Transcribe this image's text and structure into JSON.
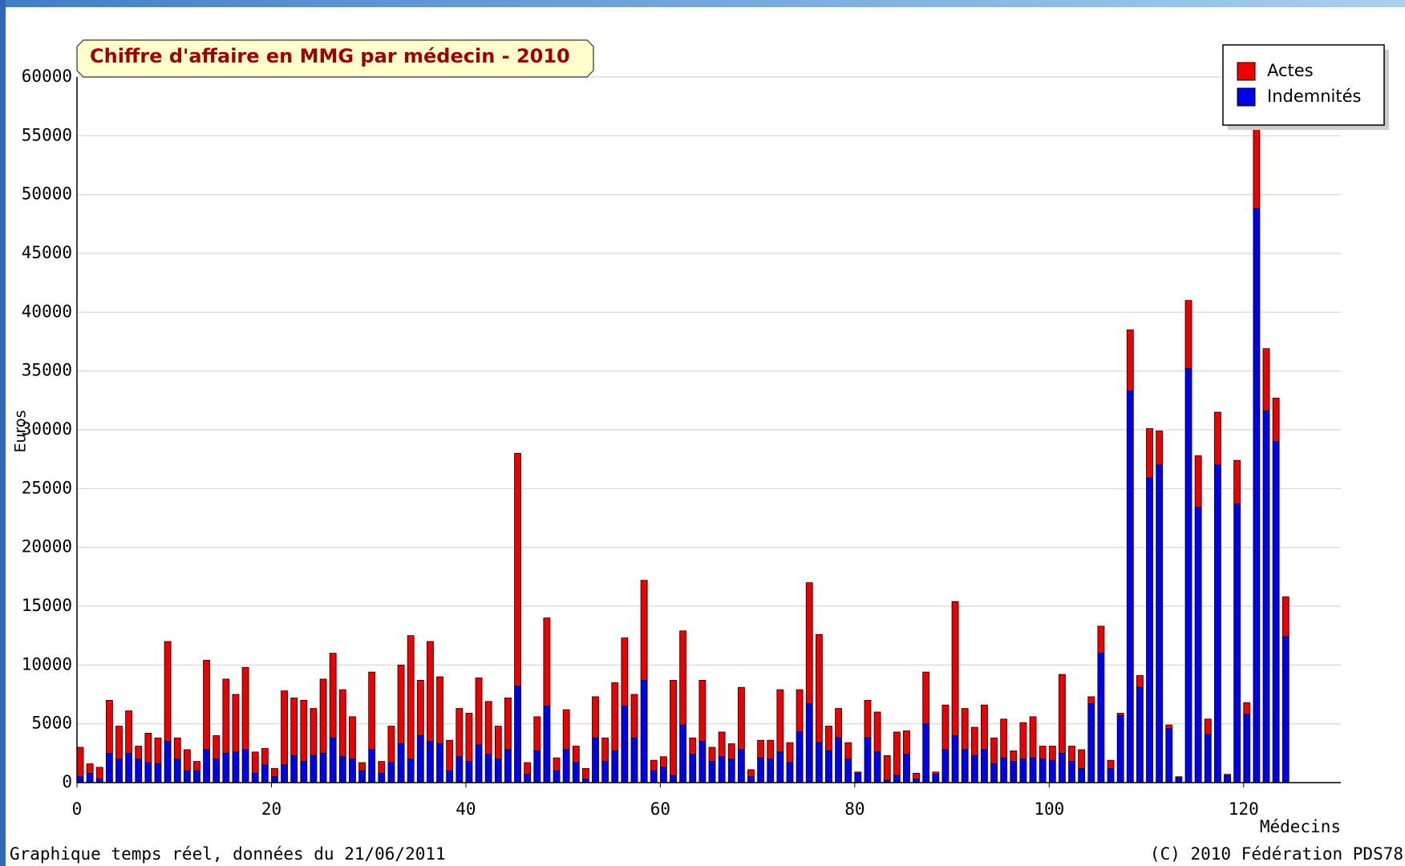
{
  "chart_data": {
    "type": "stacked_bar",
    "title": "Chiffre d'affaire en MMG par médecin  - 2010",
    "xlabel": "Médecins",
    "ylabel": "Euros",
    "footer_left": "Graphique temps réel, données du 21/06/2011",
    "footer_right": "(C) 2010 Fédération PDS78",
    "legend": "upper right",
    "grid": true,
    "x": [
      0,
      1,
      2,
      3,
      4,
      5,
      6,
      7,
      8,
      9,
      10,
      11,
      12,
      13,
      14,
      15,
      16,
      17,
      18,
      19,
      20,
      21,
      22,
      23,
      24,
      25,
      26,
      27,
      28,
      29,
      30,
      31,
      32,
      33,
      34,
      35,
      36,
      37,
      38,
      39,
      40,
      41,
      42,
      43,
      44,
      45,
      46,
      47,
      48,
      49,
      50,
      51,
      52,
      53,
      54,
      55,
      56,
      57,
      58,
      59,
      60,
      61,
      62,
      63,
      64,
      65,
      66,
      67,
      68,
      69,
      70,
      71,
      72,
      73,
      74,
      75,
      76,
      77,
      78,
      79,
      80,
      81,
      82,
      83,
      84,
      85,
      86,
      87,
      88,
      89,
      90,
      91,
      92,
      93,
      94,
      95,
      96,
      97,
      98,
      99,
      100,
      101,
      102,
      103,
      104,
      105,
      106,
      107,
      108,
      109,
      110,
      111,
      112,
      113,
      114,
      115,
      116,
      117,
      118,
      119,
      120,
      121,
      122,
      123,
      124
    ],
    "series": [
      {
        "name": "Actes",
        "color": "#ee0000",
        "values": [
          2500,
          800,
          1000,
          4500,
          2800,
          3600,
          1100,
          2500,
          2200,
          8500,
          1800,
          1800,
          800,
          7600,
          2000,
          6300,
          4900,
          7000,
          1800,
          1400,
          700,
          6300,
          4900,
          5200,
          4000,
          6300,
          7200,
          5700,
          3600,
          700,
          6600,
          1000,
          3100,
          6700,
          10500,
          4700,
          8500,
          5700,
          2600,
          4100,
          4100,
          5700,
          4500,
          2800,
          4400,
          19800,
          1000,
          2900,
          7500,
          1100,
          3400,
          1400,
          900,
          3500,
          2000,
          5800,
          5800,
          3700,
          8500,
          900,
          900,
          8100,
          8000,
          1400,
          5200,
          1200,
          2100,
          1300,
          5300,
          600,
          1500,
          1600,
          5300,
          1700,
          3600,
          10300,
          9200,
          2100,
          2500,
          1400,
          100,
          3200,
          3400,
          2100,
          3700,
          2000,
          500,
          4400,
          200,
          3800,
          11400,
          3500,
          2400,
          3800,
          2200,
          3300,
          900,
          3100,
          3500,
          1100,
          1200,
          6700,
          1300,
          1600,
          600,
          2300,
          700,
          200,
          5200,
          1000,
          4200,
          2900,
          300,
          100,
          5800,
          4400,
          1300,
          4500,
          100,
          3700,
          1000,
          8200,
          5300,
          3700,
          3400
        ]
      },
      {
        "name": "Indemnités",
        "color": "#0000ee",
        "values": [
          500,
          800,
          300,
          2500,
          2000,
          2500,
          2000,
          1700,
          1600,
          3500,
          2000,
          1000,
          1000,
          2800,
          2000,
          2500,
          2600,
          2800,
          800,
          1500,
          500,
          1500,
          2300,
          1800,
          2300,
          2500,
          3800,
          2200,
          2000,
          1000,
          2800,
          800,
          1700,
          3300,
          2000,
          4000,
          3500,
          3300,
          1000,
          2200,
          1800,
          3200,
          2400,
          2000,
          2800,
          8200,
          700,
          2700,
          6500,
          1000,
          2800,
          1700,
          300,
          3800,
          1800,
          2700,
          6500,
          3800,
          8700,
          1000,
          1300,
          600,
          4900,
          2400,
          3500,
          1800,
          2200,
          2000,
          2800,
          500,
          2100,
          2000,
          2600,
          1700,
          4300,
          6700,
          3400,
          2700,
          3800,
          2000,
          800,
          3800,
          2600,
          200,
          600,
          2400,
          300,
          5000,
          700,
          2800,
          4000,
          2800,
          2300,
          2800,
          1600,
          2100,
          1800,
          2000,
          2100,
          2000,
          1900,
          2500,
          1800,
          1200,
          6700,
          11000,
          1200,
          5700,
          33300,
          8100,
          25900,
          27000,
          4600,
          400,
          35200,
          23400,
          4100,
          27000,
          600,
          23700,
          5800,
          48800,
          31600,
          29000,
          12400
        ]
      }
    ],
    "xlim": [
      0,
      130
    ],
    "xticks": [
      0,
      20,
      40,
      60,
      80,
      100,
      120
    ],
    "ylim": [
      0,
      60000
    ],
    "yticks": [
      0,
      5000,
      10000,
      15000,
      20000,
      25000,
      30000,
      35000,
      40000,
      45000,
      50000,
      55000,
      60000
    ]
  }
}
